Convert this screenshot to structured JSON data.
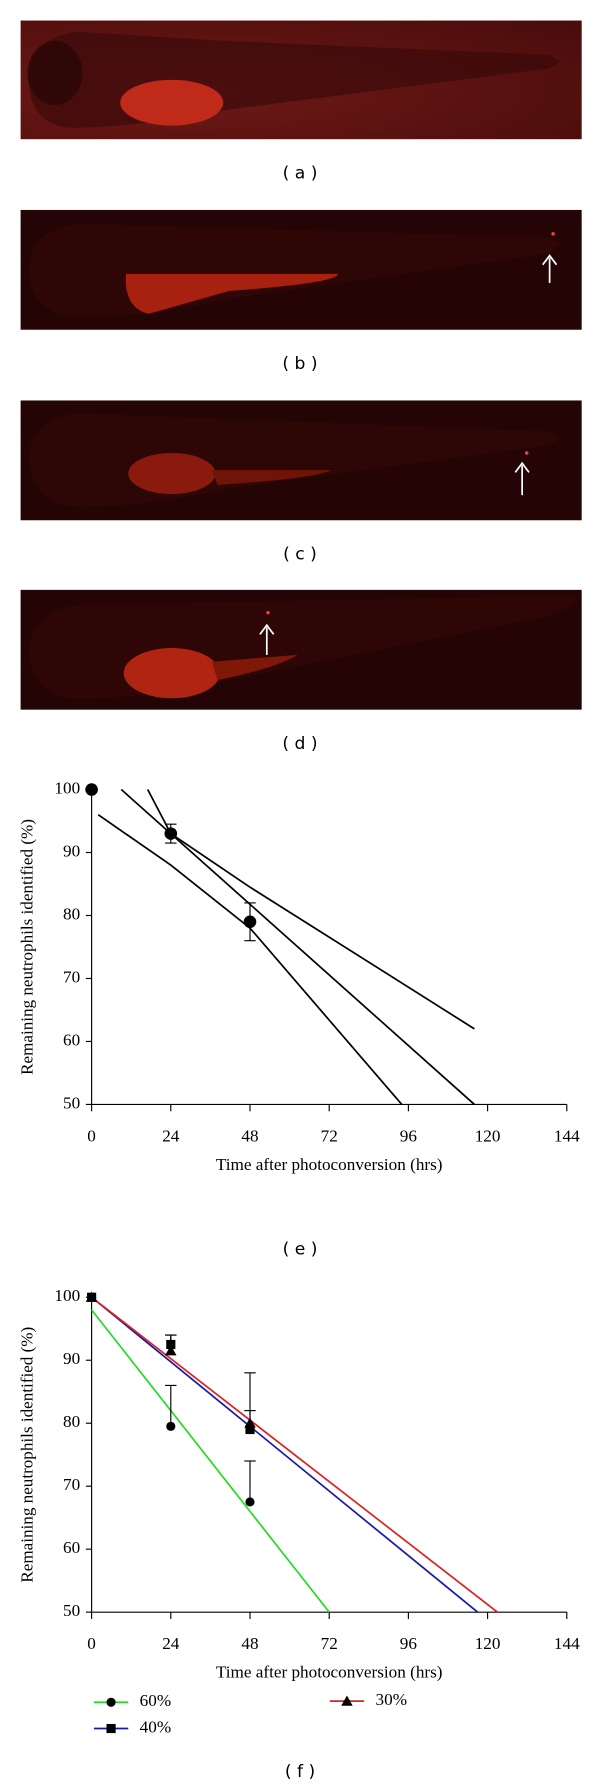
{
  "panels": [
    "( a )",
    "( b )",
    "( c )",
    "( d )",
    "( e )",
    "( f )"
  ],
  "chart_data": [
    {
      "type": "line",
      "y_label": "Remaining neutrophils identified (%)",
      "x_label": "Time after photoconversion (hrs)",
      "xlim": [
        0,
        144
      ],
      "xticks": [
        0,
        24,
        48,
        72,
        96,
        120,
        144
      ],
      "ylim": [
        50,
        100
      ],
      "yticks": [
        50,
        60,
        70,
        80,
        90,
        100
      ],
      "series": [
        {
          "color": "#000000",
          "marker": "circle",
          "x": [
            0,
            24,
            48
          ],
          "values": [
            100,
            93,
            79
          ],
          "errors": [
            null,
            1.5,
            3
          ]
        }
      ],
      "lines": [
        {
          "color": "#000000",
          "x": [
            2,
            24,
            48,
            94
          ],
          "values": [
            96,
            88,
            78,
            50
          ]
        },
        {
          "color": "#000000",
          "x": [
            9,
            116
          ],
          "values": [
            100,
            50
          ]
        },
        {
          "color": "#000000",
          "x": [
            17,
            24,
            48,
            116
          ],
          "values": [
            100,
            93,
            84.5,
            62
          ]
        }
      ]
    },
    {
      "type": "line",
      "y_label": "Remaining neutrophils identified (%)",
      "x_label": "Time after photoconversion (hrs)",
      "xlim": [
        0,
        144
      ],
      "xticks": [
        0,
        24,
        48,
        72,
        96,
        120,
        144
      ],
      "ylim": [
        50,
        100
      ],
      "yticks": [
        50,
        60,
        70,
        80,
        90,
        100
      ],
      "series": [
        {
          "name": "60%",
          "color": "#22dd22",
          "marker": "circle",
          "x": [
            0,
            24,
            48
          ],
          "values": [
            100,
            79.5,
            67.5
          ],
          "errors": [
            null,
            6.5,
            6.5
          ],
          "fit": {
            "x": [
              0,
              72
            ],
            "values": [
              98,
              50
            ]
          }
        },
        {
          "name": "40%",
          "color": "#1a1aaa",
          "marker": "square",
          "x": [
            0,
            24,
            48
          ],
          "values": [
            100,
            92.5,
            79
          ],
          "errors": [
            null,
            1.5,
            9
          ],
          "fit": {
            "x": [
              0,
              117
            ],
            "values": [
              100,
              50
            ]
          }
        },
        {
          "name": "30%",
          "color": "#dd2222",
          "marker": "triangle",
          "x": [
            0,
            24,
            48
          ],
          "values": [
            100,
            91.5,
            80
          ],
          "errors": [
            null,
            2.5,
            2
          ],
          "fit": {
            "x": [
              0,
              123
            ],
            "values": [
              100,
              50
            ]
          }
        }
      ]
    }
  ]
}
